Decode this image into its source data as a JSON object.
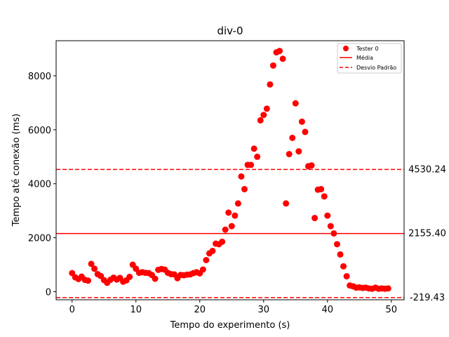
{
  "chart_data": {
    "type": "scatter",
    "title": "div-0",
    "xlabel": "Tempo do experimento (s)",
    "ylabel": "Tempo até conexão (ms)",
    "xlim": [
      -2.5,
      52.0
    ],
    "ylim": [
      -300,
      9300
    ],
    "xticks": [
      0,
      10,
      20,
      30,
      40,
      50
    ],
    "yticks": [
      0,
      2000,
      4000,
      6000,
      8000
    ],
    "grid": false,
    "legend_position": "top-right",
    "legend": [
      {
        "label": "Tester 0",
        "kind": "marker",
        "color": "#ff0000"
      },
      {
        "label": "Média",
        "kind": "solid-line",
        "color": "#ff0000"
      },
      {
        "label": "Desvio Padrão",
        "kind": "dashed-line",
        "color": "#ff0000"
      }
    ],
    "series": [
      {
        "name": "Tester 0",
        "color": "#ff0000",
        "points": [
          [
            0.0,
            690
          ],
          [
            0.5,
            530
          ],
          [
            1.0,
            470
          ],
          [
            1.5,
            560
          ],
          [
            2.0,
            440
          ],
          [
            2.5,
            410
          ],
          [
            3.0,
            1030
          ],
          [
            3.5,
            850
          ],
          [
            4.0,
            650
          ],
          [
            4.5,
            580
          ],
          [
            5.0,
            430
          ],
          [
            5.5,
            330
          ],
          [
            6.0,
            440
          ],
          [
            6.5,
            520
          ],
          [
            7.0,
            450
          ],
          [
            7.5,
            510
          ],
          [
            8.0,
            370
          ],
          [
            8.5,
            420
          ],
          [
            9.0,
            550
          ],
          [
            9.5,
            1000
          ],
          [
            10.0,
            850
          ],
          [
            10.5,
            700
          ],
          [
            11.0,
            720
          ],
          [
            11.5,
            700
          ],
          [
            12.0,
            690
          ],
          [
            12.5,
            620
          ],
          [
            13.0,
            480
          ],
          [
            13.5,
            810
          ],
          [
            14.0,
            840
          ],
          [
            14.5,
            820
          ],
          [
            15.0,
            700
          ],
          [
            15.5,
            650
          ],
          [
            16.0,
            640
          ],
          [
            16.5,
            500
          ],
          [
            17.0,
            620
          ],
          [
            17.5,
            610
          ],
          [
            18.0,
            630
          ],
          [
            18.5,
            640
          ],
          [
            19.0,
            690
          ],
          [
            19.5,
            720
          ],
          [
            20.0,
            680
          ],
          [
            20.5,
            820
          ],
          [
            21.0,
            1170
          ],
          [
            21.5,
            1420
          ],
          [
            22.0,
            1510
          ],
          [
            22.5,
            1780
          ],
          [
            23.0,
            1760
          ],
          [
            23.5,
            1850
          ],
          [
            24.0,
            2300
          ],
          [
            24.5,
            2930
          ],
          [
            25.0,
            2430
          ],
          [
            25.5,
            2820
          ],
          [
            26.0,
            3270
          ],
          [
            26.5,
            4270
          ],
          [
            27.0,
            3800
          ],
          [
            27.5,
            4700
          ],
          [
            28.0,
            4700
          ],
          [
            28.5,
            5300
          ],
          [
            29.0,
            5000
          ],
          [
            29.5,
            6350
          ],
          [
            30.0,
            6550
          ],
          [
            30.5,
            6780
          ],
          [
            31.0,
            7680
          ],
          [
            31.5,
            8380
          ],
          [
            32.0,
            8870
          ],
          [
            32.5,
            8920
          ],
          [
            33.0,
            8630
          ],
          [
            33.5,
            3270
          ],
          [
            34.0,
            5100
          ],
          [
            34.5,
            5700
          ],
          [
            35.0,
            6980
          ],
          [
            35.5,
            5200
          ],
          [
            36.0,
            6300
          ],
          [
            36.5,
            5920
          ],
          [
            37.0,
            4650
          ],
          [
            37.5,
            4680
          ],
          [
            38.0,
            2730
          ],
          [
            38.5,
            3780
          ],
          [
            39.0,
            3800
          ],
          [
            39.5,
            3530
          ],
          [
            40.0,
            2820
          ],
          [
            40.5,
            2430
          ],
          [
            41.0,
            2160
          ],
          [
            41.5,
            1760
          ],
          [
            42.0,
            1380
          ],
          [
            42.5,
            940
          ],
          [
            43.0,
            570
          ],
          [
            43.5,
            230
          ],
          [
            44.0,
            200
          ],
          [
            44.5,
            150
          ],
          [
            45.0,
            160
          ],
          [
            45.5,
            140
          ],
          [
            46.0,
            150
          ],
          [
            46.5,
            120
          ],
          [
            47.0,
            110
          ],
          [
            47.5,
            150
          ],
          [
            48.0,
            110
          ],
          [
            48.5,
            120
          ],
          [
            49.0,
            110
          ],
          [
            49.5,
            120
          ]
        ]
      }
    ],
    "reference_lines": [
      {
        "name": "Média",
        "value": 2155.4,
        "label": "2155.40",
        "style": "solid",
        "color": "#ff0000"
      },
      {
        "name": "Desvio Padrão",
        "value": 4530.24,
        "label": "4530.24",
        "style": "dashed",
        "color": "#ff0000"
      },
      {
        "name": "Desvio Padrão",
        "value": -219.43,
        "label": "-219.43",
        "style": "dashed",
        "color": "#ff0000"
      }
    ]
  }
}
